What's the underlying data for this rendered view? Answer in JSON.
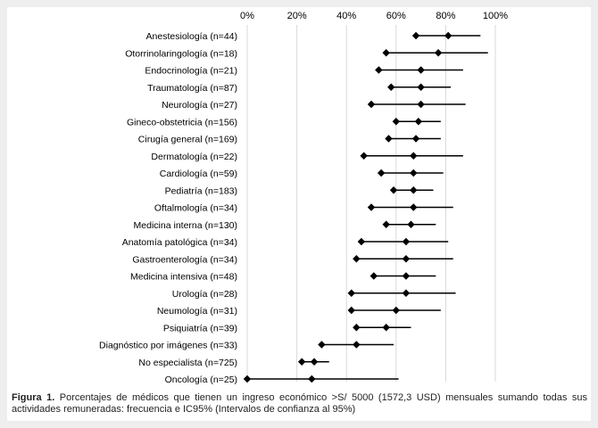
{
  "chart_data": {
    "type": "forest",
    "x_ticks": [
      "0%",
      "20%",
      "40%",
      "60%",
      "80%",
      "100%"
    ],
    "xlim": [
      0,
      100
    ],
    "grid": true,
    "categories": [
      "Anestesiología (n=44)",
      "Otorrinolaringología (n=18)",
      "Endocrinología (n=21)",
      "Traumatología (n=87)",
      "Neurología (n=27)",
      "Gineco-obstetricia (n=156)",
      "Cirugía general (n=169)",
      "Dermatología (n=22)",
      "Cardiología (n=59)",
      "Pediatría (n=183)",
      "Oftalmología (n=34)",
      "Medicina interna (n=130)",
      "Anatomía patológica (n=34)",
      "Gastroenterología (n=34)",
      "Medicina intensiva (n=48)",
      "Urología  (n=28)",
      "Neumología (n=31)",
      "Psiquiatría (n=39)",
      "Diagnóstico por imágenes (n=33)",
      "No especialista (n=725)",
      "Oncología (n=25)"
    ],
    "series": [
      {
        "values": [
          81,
          77,
          70,
          70,
          70,
          69,
          68,
          67,
          67,
          67,
          67,
          66,
          64,
          64,
          64,
          64,
          60,
          56,
          44,
          27,
          26
        ]
      }
    ],
    "ci_lower": [
      68,
      56,
      53,
      58,
      50,
      60,
      57,
      47,
      54,
      59,
      50,
      56,
      46,
      44,
      51,
      42,
      42,
      44,
      30,
      22,
      0
    ],
    "ci_upper": [
      94,
      97,
      87,
      82,
      88,
      78,
      78,
      87,
      79,
      75,
      83,
      76,
      81,
      83,
      76,
      84,
      78,
      66,
      59,
      33,
      61
    ],
    "title": "",
    "xlabel": "",
    "ylabel": ""
  },
  "caption": {
    "label": "Figura 1.",
    "text": " Porcentajes de médicos que tienen un ingreso económico >S/ 5000 (1572,3 USD) mensuales sumando todas sus actividades remuneradas: frecuencia e IC95% (Intervalos de confianza al 95%)"
  }
}
